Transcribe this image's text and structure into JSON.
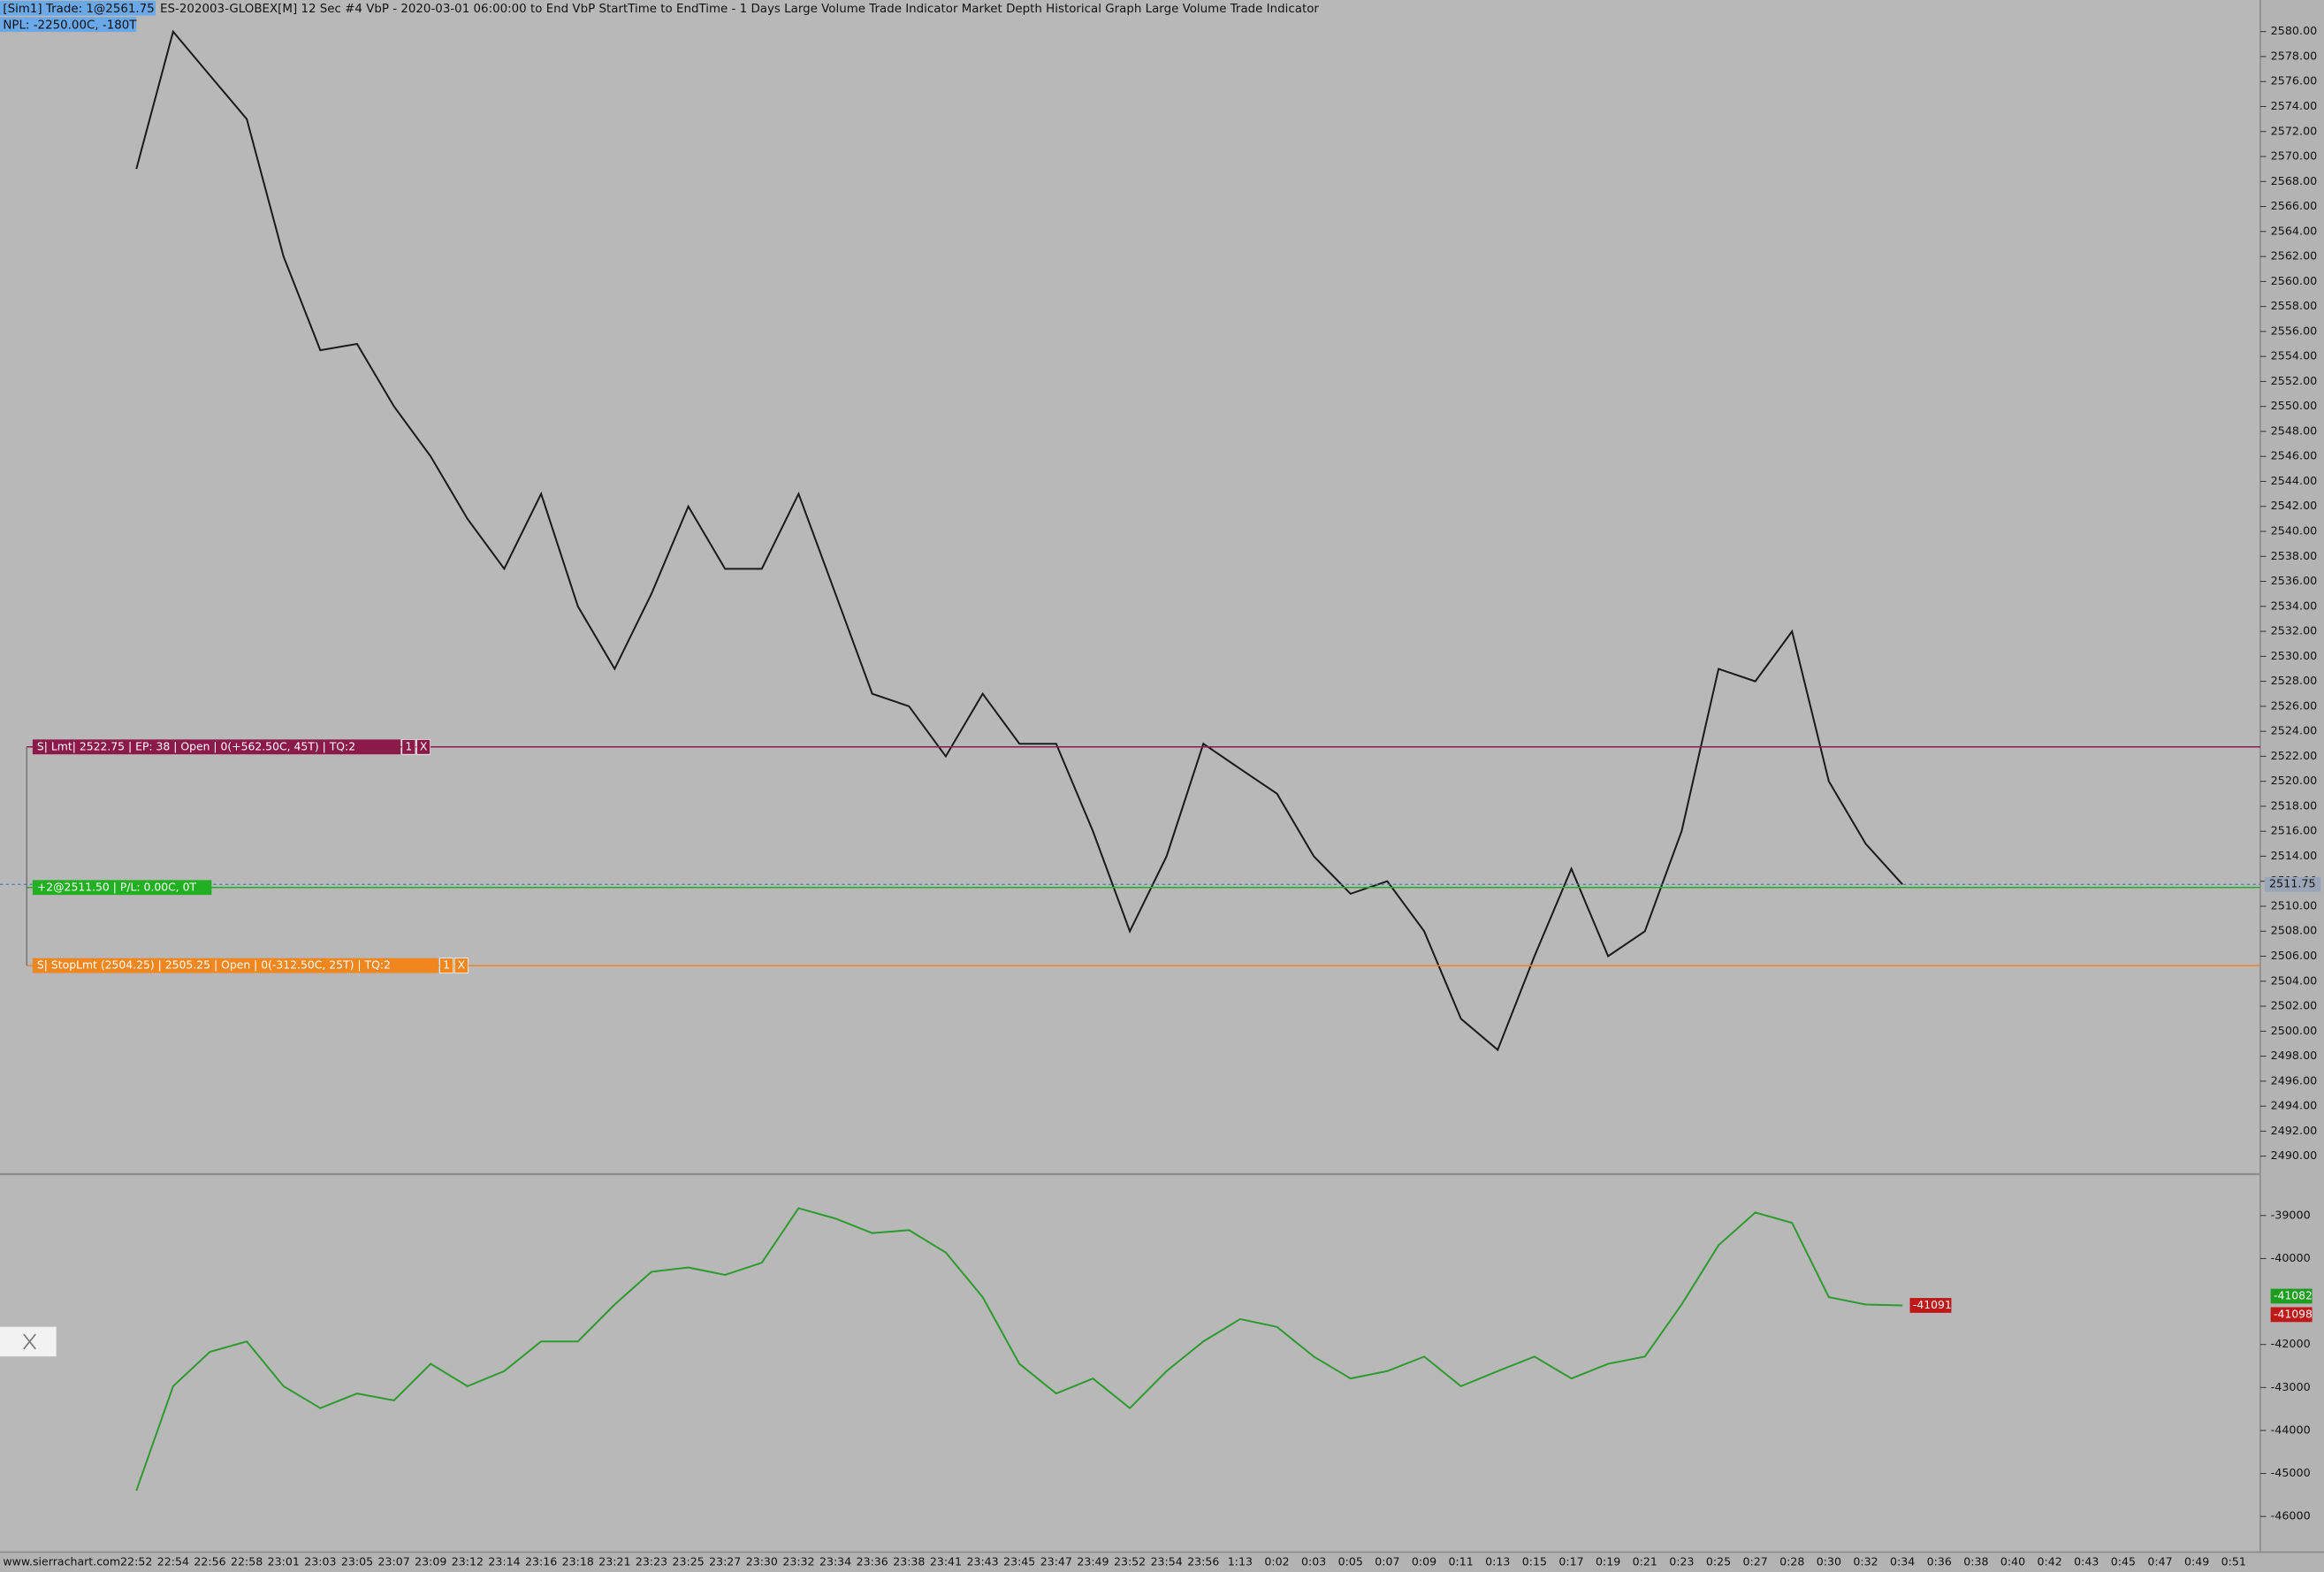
{
  "header": {
    "trade": "[Sim1] Trade: 1@2561.75",
    "study": "ES-202003-GLOBEX[M]  12 Sec  #4 VbP - 2020-03-01  06:00:00 to End  VbP StartTime to EndTime - 1 Days  Large Volume Trade Indicator  Market Depth Historical Graph  Large Volume Trade Indicator",
    "npl": "NPL: -2250.00C, -180T"
  },
  "footer": {
    "site": "www.sierrachart.com"
  },
  "chart_data": [
    {
      "type": "line",
      "color": "#1a1a1a",
      "categories": [
        "22:52",
        "22:54",
        "22:56",
        "22:58",
        "23:01",
        "23:03",
        "23:05",
        "23:07",
        "23:09",
        "23:12",
        "23:14",
        "23:16",
        "23:18",
        "23:21",
        "23:23",
        "23:25",
        "23:27",
        "23:30",
        "23:32",
        "23:34",
        "23:36",
        "23:38",
        "23:41",
        "23:43",
        "23:45",
        "23:47",
        "23:49",
        "23:52",
        "23:54",
        "23:56",
        "1:13",
        "0:02",
        "0:03",
        "0:05",
        "0:07",
        "0:09",
        "0:11",
        "0:13",
        "0:15",
        "0:17",
        "0:19",
        "0:21",
        "0:23",
        "0:25",
        "0:27",
        "0:28",
        "0:30",
        "0:32",
        "0:34",
        "0:36",
        "0:38",
        "0:40",
        "0:42",
        "0:43",
        "0:45",
        "0:47",
        "0:49",
        "0:51"
      ],
      "values": [
        2569,
        2580,
        2576.5,
        2573,
        2562,
        2554.5,
        2555,
        2550,
        2546,
        2541,
        2537,
        2543,
        2534,
        2529,
        2535,
        2542,
        2537,
        2537,
        2543,
        2535,
        2527,
        2526,
        2522,
        2527,
        2523,
        2523,
        2516,
        2508,
        2514,
        2523,
        2521,
        2519,
        2514,
        2511,
        2512,
        2508,
        2501,
        2498.5,
        2506,
        2513,
        2506,
        2508,
        2516,
        2529,
        2528,
        2532,
        2520,
        2515,
        2511.75,
        null,
        null,
        null,
        null,
        null,
        null,
        null,
        null,
        null
      ],
      "ylim": [
        2488.8,
        2581.1
      ],
      "yticks": [
        {
          "value": 2490,
          "label": "2490.00"
        },
        {
          "value": 2492,
          "label": "2492.00"
        },
        {
          "value": 2494,
          "label": "2494.00"
        },
        {
          "value": 2496,
          "label": "2496.00"
        },
        {
          "value": 2498,
          "label": "2498.00"
        },
        {
          "value": 2500,
          "label": "2500.00"
        },
        {
          "value": 2502,
          "label": "2502.00"
        },
        {
          "value": 2504,
          "label": "2504.00"
        },
        {
          "value": 2506,
          "label": "2506.00"
        },
        {
          "value": 2508,
          "label": "2508.00"
        },
        {
          "value": 2510,
          "label": "2510.00"
        },
        {
          "value": 2512,
          "label": "2512.00"
        },
        {
          "value": 2514,
          "label": "2514.00"
        },
        {
          "value": 2516,
          "label": "2516.00"
        },
        {
          "value": 2518,
          "label": "2518.00"
        },
        {
          "value": 2520,
          "label": "2520.00"
        },
        {
          "value": 2522,
          "label": "2522.00"
        },
        {
          "value": 2524,
          "label": "2524.00"
        },
        {
          "value": 2526,
          "label": "2526.00"
        },
        {
          "value": 2528,
          "label": "2528.00"
        },
        {
          "value": 2530,
          "label": "2530.00"
        },
        {
          "value": 2532,
          "label": "2532.00"
        },
        {
          "value": 2534,
          "label": "2534.00"
        },
        {
          "value": 2536,
          "label": "2536.00"
        },
        {
          "value": 2538,
          "label": "2538.00"
        },
        {
          "value": 2540,
          "label": "2540.00"
        },
        {
          "value": 2542,
          "label": "2542.00"
        },
        {
          "value": 2544,
          "label": "2544.00"
        },
        {
          "value": 2546,
          "label": "2546.00"
        },
        {
          "value": 2548,
          "label": "2548.00"
        },
        {
          "value": 2550,
          "label": "2550.00"
        },
        {
          "value": 2552,
          "label": "2552.00"
        },
        {
          "value": 2554,
          "label": "2554.00"
        },
        {
          "value": 2556,
          "label": "2556.00"
        },
        {
          "value": 2558,
          "label": "2558.00"
        },
        {
          "value": 2560,
          "label": "2560.00"
        },
        {
          "value": 2562,
          "label": "2562.00"
        },
        {
          "value": 2564,
          "label": "2564.00"
        },
        {
          "value": 2566,
          "label": "2566.00"
        },
        {
          "value": 2568,
          "label": "2568.00"
        },
        {
          "value": 2570,
          "label": "2570.00"
        },
        {
          "value": 2572,
          "label": "2572.00"
        },
        {
          "value": 2574,
          "label": "2574.00"
        },
        {
          "value": 2576,
          "label": "2576.00"
        },
        {
          "value": 2578,
          "label": "2578.00"
        },
        {
          "value": 2580,
          "label": "2580.00"
        }
      ],
      "last_price": {
        "value": 2511.75,
        "color": "#9aa6b8"
      },
      "orders": [
        {
          "label": "S| Lmt| 2522.75 | EP: 38 | Open | 0(+562.50C, 45T) | TQ:2",
          "price": 2522.75,
          "color": "#8b1a4a",
          "buttons": [
            "1",
            "X"
          ]
        },
        {
          "label": "+2@2511.50 | P/L: 0.00C, 0T",
          "price": 2511.5,
          "color": "#22b022",
          "buttons": []
        },
        {
          "label": "S| StopLmt (2504.25) | 2505.25 | Open | 0(-312.50C, 25T) | TQ:2",
          "price": 2505.25,
          "color": "#f0861e",
          "buttons": [
            "1",
            "X"
          ]
        }
      ]
    },
    {
      "type": "line",
      "color": "#2f9a2f",
      "values": [
        -45400,
        -42970,
        -42170,
        -41930,
        -42970,
        -43480,
        -43140,
        -43300,
        -42450,
        -42970,
        -42620,
        -41930,
        -41930,
        -41070,
        -40310,
        -40210,
        -40380,
        -40100,
        -38830,
        -39070,
        -39410,
        -39340,
        -39860,
        -40900,
        -42450,
        -43140,
        -42790,
        -43480,
        -42620,
        -41930,
        -41410,
        -41590,
        -42280,
        -42790,
        -42620,
        -42280,
        -42970,
        -42620,
        -42280,
        -42790,
        -42450,
        -42280,
        -41070,
        -39690,
        -38930,
        -39170,
        -40900,
        -41070,
        -41091,
        null,
        null,
        null,
        null,
        null,
        null,
        null,
        null,
        null
      ],
      "ylim": [
        -46760,
        -38140
      ],
      "yticks": [
        -46000,
        -45000,
        -44000,
        -43000,
        -42000,
        -40000,
        -39000
      ],
      "markers": [
        {
          "value": -41082,
          "color": "#1e9e1e"
        },
        {
          "value": -41098,
          "color": "#c01818"
        }
      ],
      "last_value": {
        "value": -41091,
        "color": "#c01818"
      }
    }
  ]
}
